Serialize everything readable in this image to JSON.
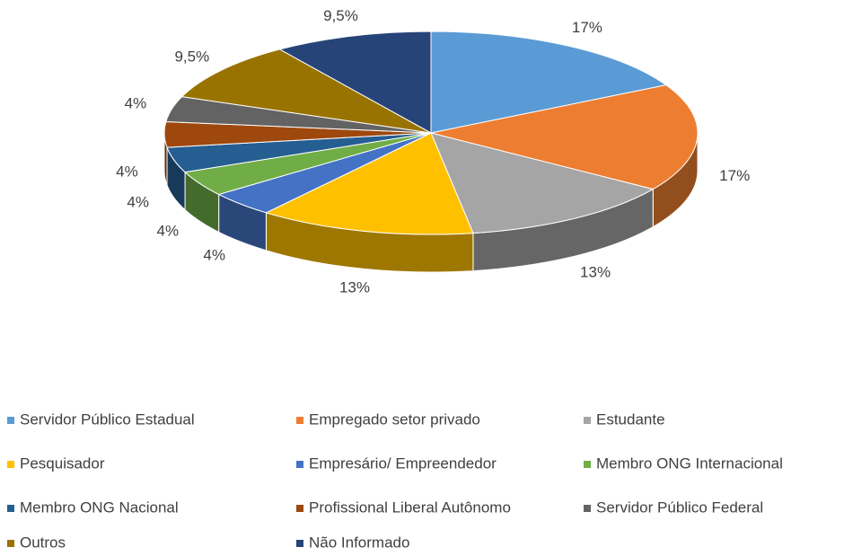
{
  "chart_data": {
    "type": "pie",
    "categories": [
      "Servidor Público Estadual",
      "Empregado setor privado",
      "Estudante",
      "Pesquisador",
      "Empresário/ Empreendedor",
      "Membro ONG Internacional",
      "Membro ONG Nacional",
      "Profissional Liberal Autônomo",
      "Servidor Público Federal",
      "Outros",
      "Não Informado"
    ],
    "values": [
      17,
      17,
      13,
      13,
      4,
      4,
      4,
      4,
      4,
      9.5,
      9.5
    ],
    "value_labels": [
      "17%",
      "17%",
      "13%",
      "13%",
      "4%",
      "4%",
      "4%",
      "4%",
      "4%",
      "9,5%",
      "9,5%"
    ],
    "colors": [
      "#5b9bd5",
      "#ed7d31",
      "#a5a5a5",
      "#ffc000",
      "#4472c4",
      "#70ad47",
      "#255e91",
      "#9e480e",
      "#636363",
      "#997300",
      "#264478"
    ],
    "legend": "bottom"
  }
}
